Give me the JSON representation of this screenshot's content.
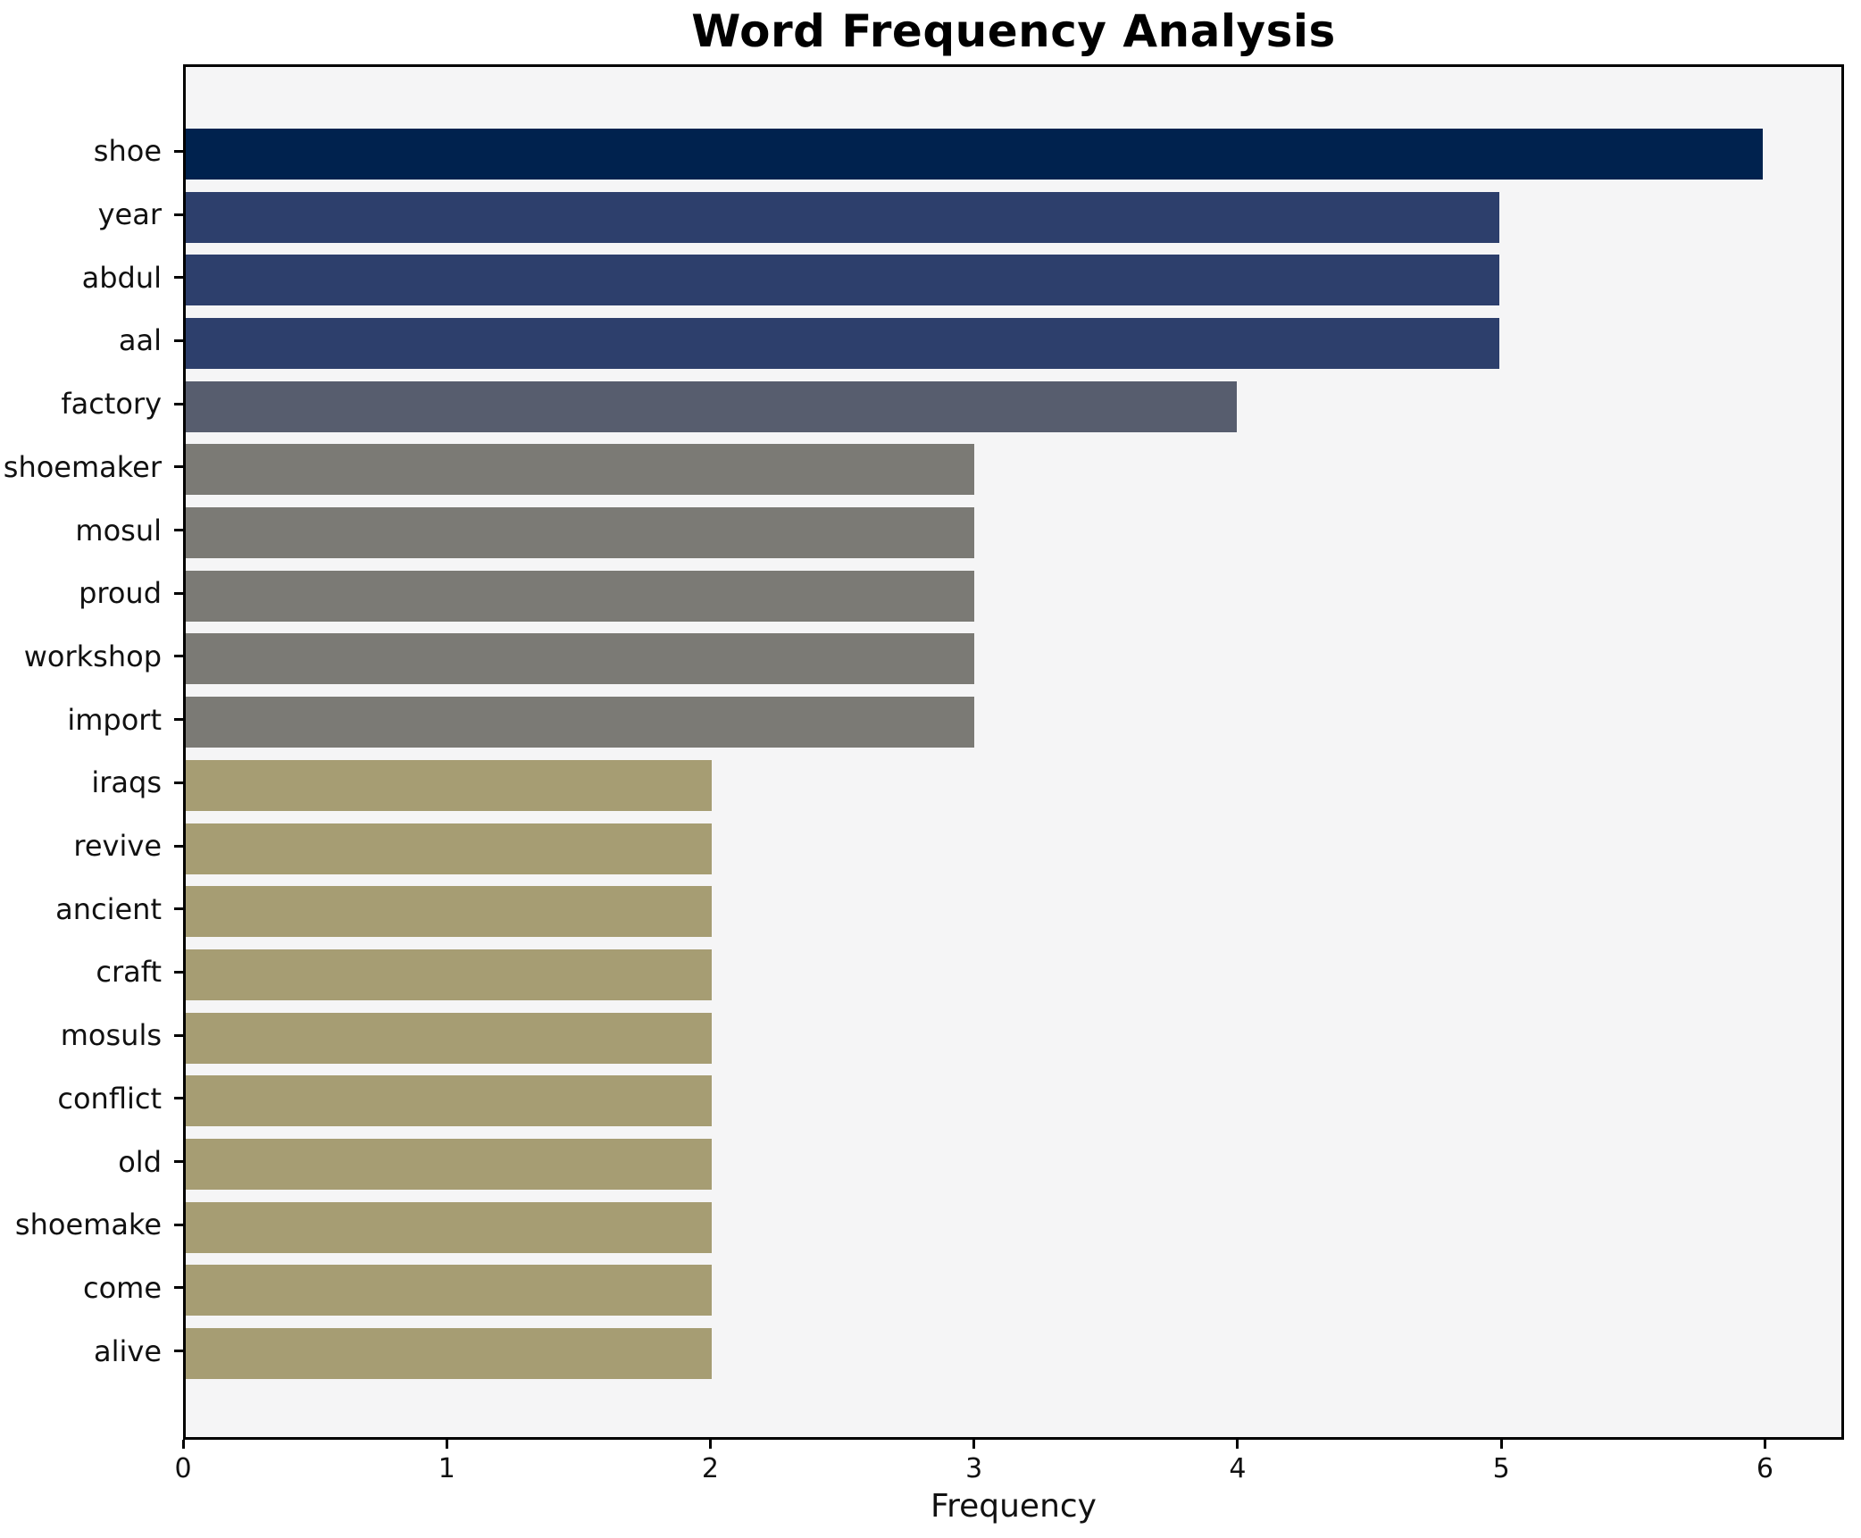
{
  "chart_data": {
    "type": "bar",
    "orientation": "horizontal",
    "title": "Word Frequency Analysis",
    "xlabel": "Frequency",
    "ylabel": "",
    "categories": [
      "shoe",
      "year",
      "abdul",
      "aal",
      "factory",
      "shoemaker",
      "mosul",
      "proud",
      "workshop",
      "import",
      "iraqs",
      "revive",
      "ancient",
      "craft",
      "mosuls",
      "conflict",
      "old",
      "shoemake",
      "come",
      "alive"
    ],
    "values": [
      6,
      5,
      5,
      5,
      4,
      3,
      3,
      3,
      3,
      3,
      2,
      2,
      2,
      2,
      2,
      2,
      2,
      2,
      2,
      2
    ],
    "bar_colors": [
      "#00224e",
      "#2d3f6c",
      "#2d3f6c",
      "#2d3f6c",
      "#575d6e",
      "#7b7a75",
      "#7b7a75",
      "#7b7a75",
      "#7b7a75",
      "#7b7a75",
      "#a69d73",
      "#a69d73",
      "#a69d73",
      "#a69d73",
      "#a69d73",
      "#a69d73",
      "#a69d73",
      "#a69d73",
      "#a69d73",
      "#a69d73"
    ],
    "xlim": [
      0,
      6.3
    ],
    "x_ticks": [
      0,
      1,
      2,
      3,
      4,
      5,
      6
    ],
    "grid": false,
    "legend": false,
    "plot_background": "#f5f5f6",
    "figure_background": "#ffffff",
    "spine_color": "#000000"
  }
}
